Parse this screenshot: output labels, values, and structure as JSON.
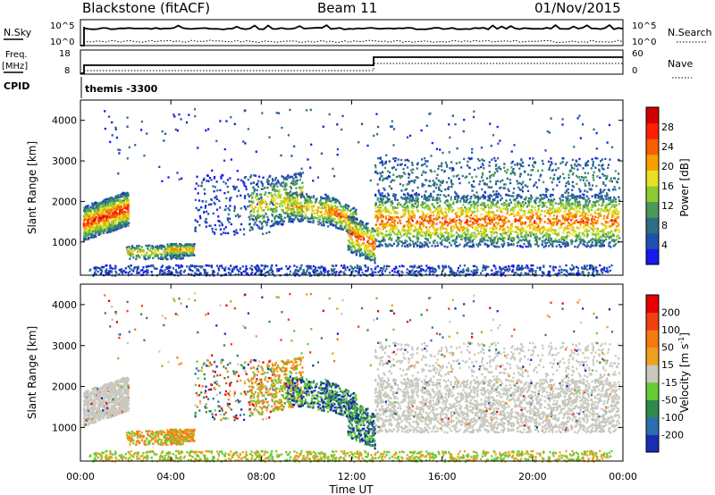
{
  "header": {
    "station": "Blackstone (fitACF)",
    "beam": "Beam 11",
    "date": "01/Nov/2015"
  },
  "aux_panels": {
    "nsky_label": "N.Sky",
    "nsearch_label": "N.Search",
    "noise_ticks": [
      "10^5",
      "10^0"
    ],
    "freq_label": "Freq.",
    "freq_unit": "[MHz]",
    "freq_ticks": [
      "18",
      "8"
    ],
    "nave_label": "Nave",
    "nave_ticks": [
      "60",
      "0"
    ],
    "cpid_label": "CPID",
    "cpid_value": "themis -3300"
  },
  "chart_data": [
    {
      "type": "heatmap",
      "name": "power",
      "ylabel": "Slant Range [km]",
      "xlabel": "",
      "x_ticks": [
        "00:00",
        "04:00",
        "08:00",
        "12:00",
        "16:00",
        "20:00",
        "00:00"
      ],
      "y_ticks": [
        1000,
        2000,
        3000,
        4000
      ],
      "xlim_hours": [
        0,
        24
      ],
      "ylim_km": [
        180,
        4500
      ],
      "colorbar": {
        "label": "Power [dB]",
        "ticks": [
          4,
          8,
          12,
          16,
          20,
          24,
          28
        ],
        "colors": [
          "#1818f0",
          "#2050b0",
          "#2f6f86",
          "#4a9a5a",
          "#8ccc30",
          "#e8e020",
          "#f7a000",
          "#f46000",
          "#ff2000",
          "#d00000"
        ]
      }
    },
    {
      "type": "heatmap",
      "name": "velocity",
      "ylabel": "Slant Range [km]",
      "xlabel": "Time UT",
      "x_ticks": [
        "00:00",
        "04:00",
        "08:00",
        "12:00",
        "16:00",
        "20:00",
        "00:00"
      ],
      "y_ticks": [
        1000,
        2000,
        3000,
        4000
      ],
      "xlim_hours": [
        0,
        24
      ],
      "ylim_km": [
        180,
        4500
      ],
      "colorbar": {
        "label": "Velocity [m s",
        "label_superscript": "-1",
        "label_close": "]",
        "ticks": [
          200,
          100,
          50,
          15,
          -15,
          -50,
          -100,
          -200
        ],
        "colors": [
          "#1a2cb0",
          "#2c6fb0",
          "#2e8a4a",
          "#66cc33",
          "#c8c8c0",
          "#f0a020",
          "#f57a10",
          "#f04010",
          "#e80000"
        ]
      }
    }
  ]
}
